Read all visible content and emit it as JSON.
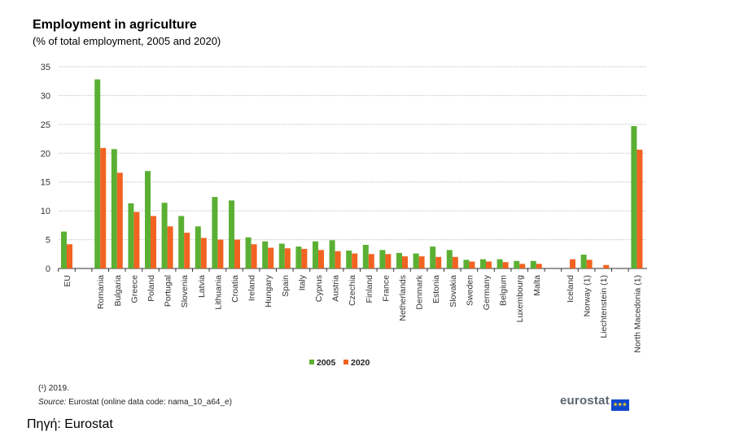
{
  "chart_data": {
    "type": "bar",
    "title": "Employment in agriculture",
    "subtitle": "(% of total employment,  2005 and 2020)",
    "xlabel": "",
    "ylabel": "",
    "ylim": [
      0,
      35
    ],
    "yticks": [
      0,
      5,
      10,
      15,
      20,
      25,
      30,
      35
    ],
    "grid": true,
    "legend_position": "bottom-center",
    "categories": [
      "EU",
      null,
      "Romania",
      "Bulgaria",
      "Greece",
      "Poland",
      "Portugal",
      "Slovenia",
      "Latvia",
      "Lithuania",
      "Croatia",
      "Ireland",
      "Hungary",
      "Spain",
      "Italy",
      "Cyprus",
      "Austria",
      "Czechia",
      "Finland",
      "France",
      "Netherlands",
      "Denmark",
      "Estonia",
      "Slovakia",
      "Sweden",
      "Germany",
      "Belgium",
      "Luxembourg",
      "Malta",
      null,
      "Iceland",
      "Norway (1)",
      "Liechtenstein (1)",
      null,
      "North Macedonia (1)"
    ],
    "series": [
      {
        "name": "2005",
        "color": "#5bb033",
        "values": [
          6.4,
          null,
          32.8,
          20.7,
          11.3,
          16.9,
          11.4,
          9.1,
          7.3,
          12.4,
          11.8,
          5.4,
          4.7,
          4.3,
          3.8,
          4.7,
          4.9,
          3.1,
          4.1,
          3.2,
          2.7,
          2.6,
          3.8,
          3.2,
          1.5,
          1.6,
          1.6,
          1.3,
          1.3,
          null,
          null,
          2.4,
          null,
          null,
          24.7
        ]
      },
      {
        "name": "2020",
        "color": "#f26322",
        "values": [
          4.2,
          null,
          20.9,
          16.6,
          9.8,
          9.1,
          7.3,
          6.2,
          5.3,
          5.0,
          5.0,
          4.2,
          3.6,
          3.5,
          3.4,
          3.2,
          3.0,
          2.6,
          2.5,
          2.5,
          2.1,
          2.1,
          2.0,
          2.0,
          1.2,
          1.2,
          1.1,
          0.8,
          0.8,
          null,
          1.6,
          1.5,
          0.6,
          null,
          20.6
        ]
      }
    ]
  },
  "footnotes": {
    "note": "(¹) 2019.",
    "source_label": "Source:",
    "source_text": " Eurostat (online data code: nama_10_a64_e)"
  },
  "logo_text": "eurostat",
  "greek_source": "Πηγή: Eurostat"
}
